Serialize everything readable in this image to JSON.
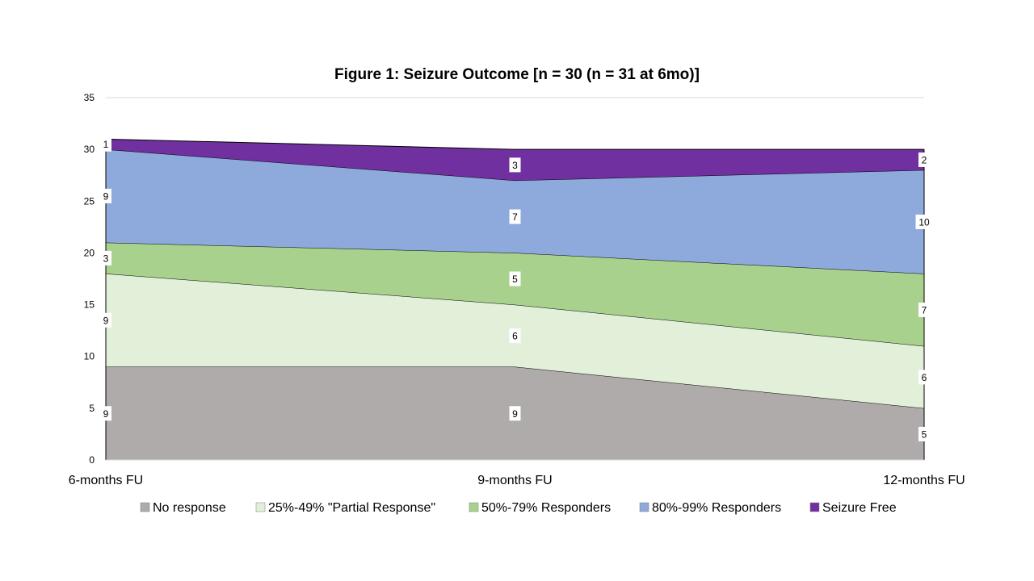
{
  "chart_data": {
    "type": "area",
    "stacked": true,
    "title": "Figure 1: Seizure Outcome [n = 30 (n = 31 at 6mo)]",
    "categories": [
      "6-months FU",
      "9-months FU",
      "12-months FU"
    ],
    "ylim": [
      0,
      35
    ],
    "yticks": [
      0,
      5,
      10,
      15,
      20,
      25,
      30,
      35
    ],
    "grid": true,
    "legend_position": "bottom",
    "series": [
      {
        "name": "No response",
        "values": [
          9,
          9,
          5
        ],
        "color": "#AFABAB"
      },
      {
        "name": "25%-49% \"Partial Response\"",
        "values": [
          9,
          6,
          6
        ],
        "color": "#E2F0D9"
      },
      {
        "name": "50%-79% Responders",
        "values": [
          3,
          5,
          7
        ],
        "color": "#A9D18E"
      },
      {
        "name": "80%-99% Responders",
        "values": [
          9,
          7,
          10
        ],
        "color": "#8EA9DB"
      },
      {
        "name": "Seizure Free",
        "values": [
          1,
          3,
          2
        ],
        "color": "#7030A0"
      }
    ]
  }
}
